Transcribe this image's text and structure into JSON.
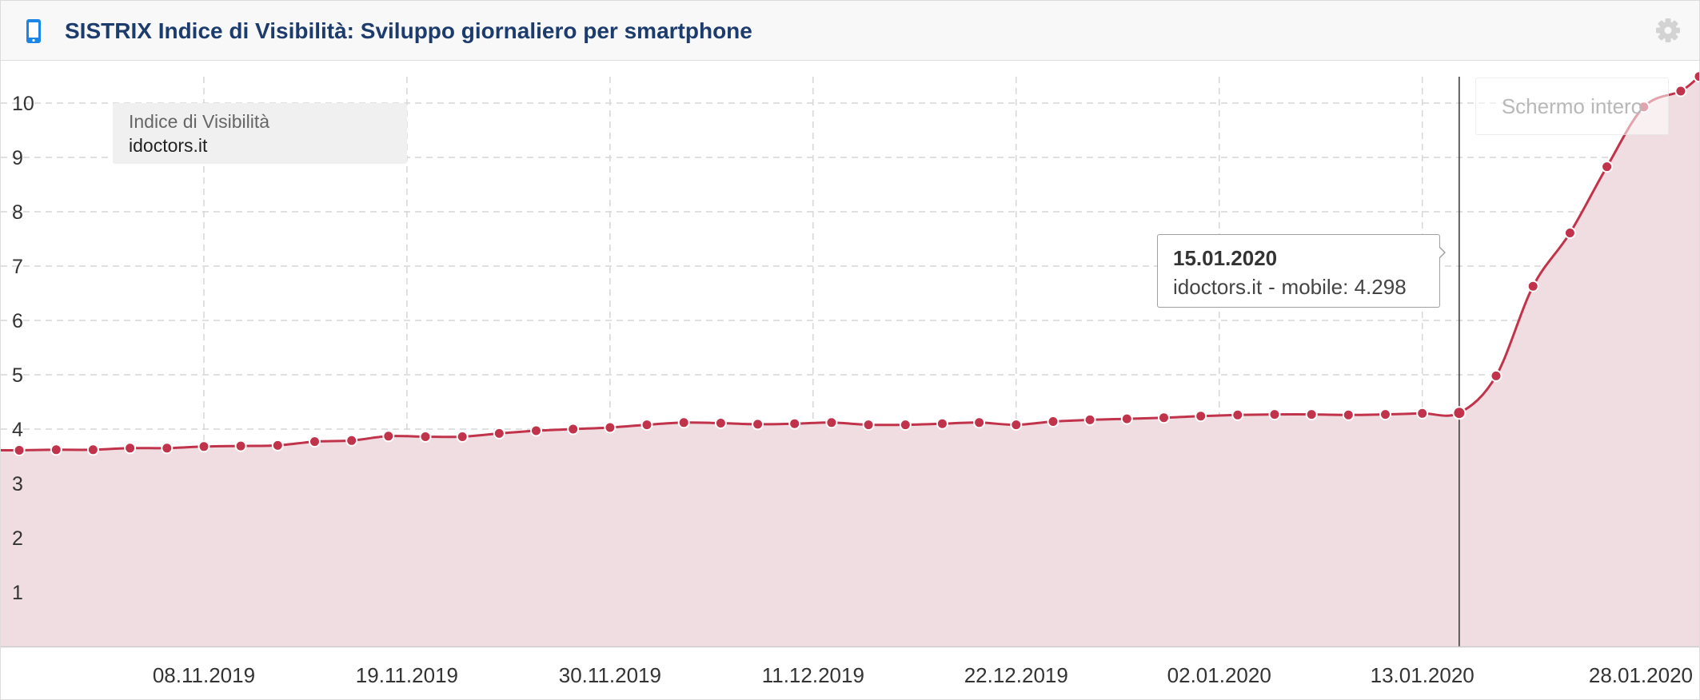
{
  "header": {
    "title": "SISTRIX Indice di Visibilità: Sviluppo giornaliero per smartphone",
    "device_icon": "smartphone-icon",
    "settings_icon": "gear-icon",
    "icon_color": "#1a86e8",
    "title_color": "#1d3c6e"
  },
  "legend": {
    "title": "Indice di Visibilità",
    "series": "idoctors.it"
  },
  "fullscreen_button": {
    "label": "Schermo intero"
  },
  "tooltip": {
    "date": "15.01.2020",
    "series": "idoctors.it",
    "separator": "-",
    "metric": "mobile:",
    "value": "4.298"
  },
  "chart_data": {
    "type": "area",
    "title": "",
    "xlabel": "",
    "ylabel": "",
    "ylim": [
      0,
      10.5
    ],
    "yticks": [
      1,
      2,
      3,
      4,
      5,
      6,
      7,
      8,
      9,
      10
    ],
    "xlim": [
      "2019-10-28",
      "2020-01-28"
    ],
    "x_tick_labels": [
      "08.11.2019",
      "19.11.2019",
      "30.11.2019",
      "11.12.2019",
      "22.12.2019",
      "02.01.2020",
      "13.01.2020",
      "28.01.2020"
    ],
    "grid": true,
    "line_color": "#c1334a",
    "fill_color": "#f0dde1",
    "highlighted_x": "2020-01-15",
    "series": [
      {
        "name": "idoctors.it",
        "x": [
          "2019-10-29",
          "2019-10-31",
          "2019-11-02",
          "2019-11-04",
          "2019-11-06",
          "2019-11-08",
          "2019-11-10",
          "2019-11-12",
          "2019-11-14",
          "2019-11-16",
          "2019-11-18",
          "2019-11-20",
          "2019-11-22",
          "2019-11-24",
          "2019-11-26",
          "2019-11-28",
          "2019-11-30",
          "2019-12-02",
          "2019-12-04",
          "2019-12-06",
          "2019-12-08",
          "2019-12-10",
          "2019-12-12",
          "2019-12-14",
          "2019-12-16",
          "2019-12-18",
          "2019-12-20",
          "2019-12-22",
          "2019-12-24",
          "2019-12-26",
          "2019-12-28",
          "2019-12-30",
          "2020-01-01",
          "2020-01-03",
          "2020-01-05",
          "2020-01-07",
          "2020-01-09",
          "2020-01-11",
          "2020-01-13",
          "2020-01-15",
          "2020-01-17",
          "2020-01-19",
          "2020-01-21",
          "2020-01-23",
          "2020-01-25",
          "2020-01-27",
          "2020-01-28"
        ],
        "values": [
          3.61,
          3.62,
          3.62,
          3.65,
          3.65,
          3.68,
          3.69,
          3.7,
          3.77,
          3.79,
          3.87,
          3.86,
          3.86,
          3.92,
          3.97,
          4.0,
          4.03,
          4.08,
          4.12,
          4.11,
          4.09,
          4.1,
          4.12,
          4.08,
          4.08,
          4.1,
          4.12,
          4.08,
          4.14,
          4.17,
          4.19,
          4.21,
          4.24,
          4.26,
          4.27,
          4.27,
          4.26,
          4.27,
          4.29,
          4.298,
          4.98,
          6.63,
          7.61,
          8.83,
          9.93,
          10.22,
          10.49
        ]
      }
    ]
  }
}
